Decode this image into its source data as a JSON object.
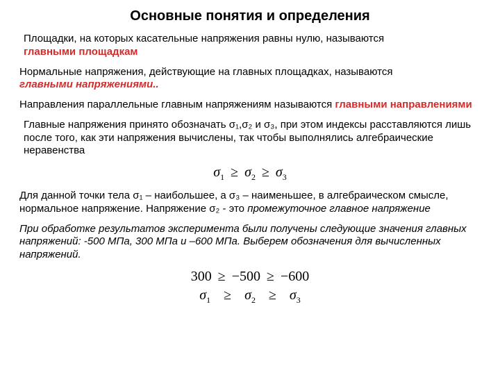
{
  "title": "Основные понятия и определения",
  "p1": {
    "text": "Площадки, на которых касательные напряжения равны нулю, называются",
    "term": "главными площадкам"
  },
  "p2": {
    "text": "Нормальные напряжения, действующие на главных площадках, называются",
    "term": "главными напряжениями.."
  },
  "p3": {
    "lead": "Направления параллельные главным напряжениям называются  ",
    "term": "главными направлениями"
  },
  "p4": "Главные напряжения принято обозначать σ₁,σ₂ и σ₃, при этом индексы расставляются лишь после того, как эти напряжения вычислены, так чтобы выполнялись алгебраические неравенства",
  "formula1": {
    "s1": "σ",
    "i1": "1",
    "ge1": "≥",
    "s2": "σ",
    "i2": "2",
    "ge2": "≥",
    "s3": "σ",
    "i3": "3"
  },
  "p5": {
    "a": "Для данной точки тела σ₁ – наибольшее, а σ₃ – наименьшее, в алгебраическом смысле, нормальное напряжение. Напряжение σ₂ - это ",
    "b": "промежуточное главное напряжение"
  },
  "p6": "При обработке результатов эксперимента были получены следующие значения главных напряжений: -500 МПа, 300 МПа и –600 МПа. Выберем обозначения для вычисленных напряжений.",
  "formula2": {
    "row1": {
      "v1": "300",
      "ge1": "≥",
      "v2": "−500",
      "ge2": "≥",
      "v3": "−600"
    },
    "row2": {
      "s1": "σ",
      "i1": "1",
      "ge1": "≥",
      "s2": "σ",
      "i2": "2",
      "ge2": "≥",
      "s3": "σ",
      "i3": "3"
    }
  },
  "colors": {
    "accent": "#d22b2b",
    "text": "#000000",
    "bg": "#ffffff"
  }
}
